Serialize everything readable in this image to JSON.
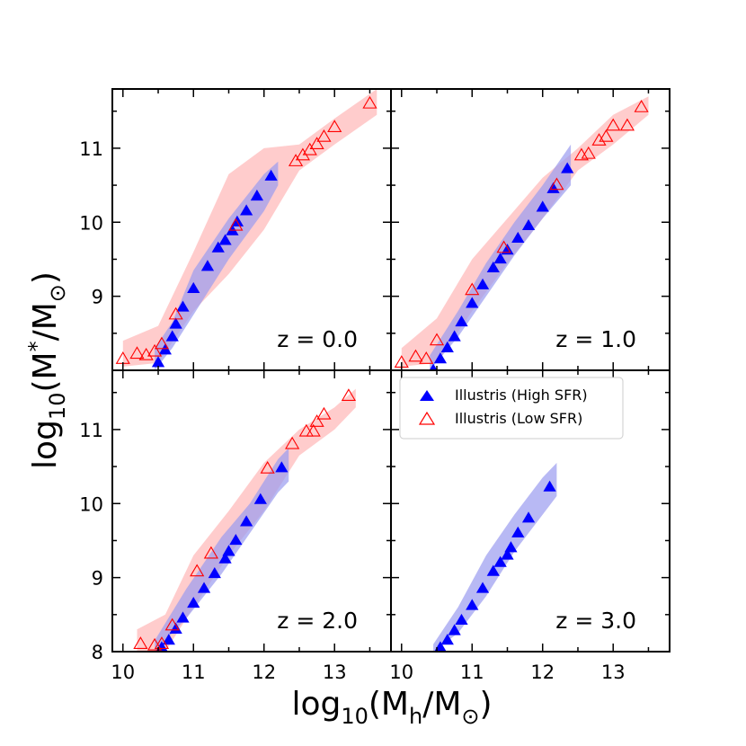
{
  "figure": {
    "xlabel": {
      "base": "log",
      "sub": "10",
      "pre": "(M",
      "msub": "h",
      "post": "/M",
      "sun": "⊙",
      "close": ")"
    },
    "ylabel": {
      "base": "log",
      "sub": "10",
      "pre": "(M",
      "msub": "*",
      "post": "/M",
      "sun": "⊙",
      "close": ")"
    },
    "colors": {
      "high": "#0000ff",
      "low": "#ff0000",
      "high_band": "#9a9bf0",
      "low_band": "#ffb6b6"
    }
  },
  "legend": {
    "entries": [
      {
        "label": "Illustris (High SFR)",
        "marker": "filled-triangle",
        "color": "#0000ff"
      },
      {
        "label": "Illustris (Low SFR)",
        "marker": "open-triangle",
        "color": "#ff0000"
      }
    ]
  },
  "chart_data": {
    "type": "scatter",
    "layout": "2x2 grid, shared axes",
    "xlim": [
      9.85,
      13.8
    ],
    "ylim": [
      8.0,
      11.8
    ],
    "xticks": [
      10,
      11,
      12,
      13
    ],
    "yticks": [
      8,
      9,
      10,
      11
    ],
    "panels": [
      {
        "label": "z = 0.0",
        "high": [
          [
            10.5,
            8.1
          ],
          [
            10.6,
            8.27
          ],
          [
            10.7,
            8.45
          ],
          [
            10.75,
            8.62
          ],
          [
            10.85,
            8.85
          ],
          [
            11.0,
            9.1
          ],
          [
            11.2,
            9.4
          ],
          [
            11.35,
            9.65
          ],
          [
            11.45,
            9.75
          ],
          [
            11.55,
            9.88
          ],
          [
            11.62,
            10.0
          ],
          [
            11.75,
            10.15
          ],
          [
            11.9,
            10.35
          ],
          [
            12.1,
            10.62
          ]
        ],
        "low": [
          [
            10.0,
            8.15
          ],
          [
            10.2,
            8.22
          ],
          [
            10.33,
            8.2
          ],
          [
            10.45,
            8.25
          ],
          [
            10.55,
            8.35
          ],
          [
            10.75,
            8.75
          ],
          [
            11.6,
            9.95
          ],
          [
            12.45,
            10.82
          ],
          [
            12.55,
            10.9
          ],
          [
            12.65,
            10.97
          ],
          [
            12.75,
            11.05
          ],
          [
            12.85,
            11.15
          ],
          [
            13.0,
            11.28
          ],
          [
            13.5,
            11.6
          ]
        ],
        "high_band": {
          "x": [
            10.45,
            10.7,
            11.0,
            11.5,
            12.0,
            12.2
          ],
          "lo": [
            8.0,
            8.3,
            8.75,
            9.5,
            10.15,
            10.5
          ],
          "hi": [
            8.3,
            8.65,
            9.35,
            10.05,
            10.65,
            10.82
          ]
        },
        "low_band": {
          "x": [
            10.0,
            10.5,
            11.0,
            11.5,
            12.0,
            12.5,
            13.0,
            13.6
          ],
          "lo": [
            8.05,
            8.1,
            8.8,
            9.3,
            9.9,
            10.7,
            11.05,
            11.45
          ],
          "hi": [
            8.4,
            8.6,
            9.6,
            10.65,
            11.0,
            11.05,
            11.4,
            11.8
          ]
        }
      },
      {
        "label": "z = 1.0",
        "high": [
          [
            10.45,
            8.0
          ],
          [
            10.55,
            8.15
          ],
          [
            10.65,
            8.3
          ],
          [
            10.75,
            8.45
          ],
          [
            10.85,
            8.65
          ],
          [
            11.0,
            8.9
          ],
          [
            11.15,
            9.15
          ],
          [
            11.3,
            9.38
          ],
          [
            11.4,
            9.5
          ],
          [
            11.5,
            9.62
          ],
          [
            11.65,
            9.78
          ],
          [
            11.8,
            9.95
          ],
          [
            12.0,
            10.2
          ],
          [
            12.15,
            10.45
          ],
          [
            12.35,
            10.72
          ]
        ],
        "low": [
          [
            10.0,
            8.1
          ],
          [
            10.2,
            8.18
          ],
          [
            10.35,
            8.15
          ],
          [
            10.5,
            8.4
          ],
          [
            11.0,
            9.08
          ],
          [
            11.45,
            9.65
          ],
          [
            12.2,
            10.5
          ],
          [
            12.55,
            10.9
          ],
          [
            12.65,
            10.92
          ],
          [
            12.8,
            11.1
          ],
          [
            12.9,
            11.15
          ],
          [
            13.0,
            11.3
          ],
          [
            13.2,
            11.3
          ],
          [
            13.4,
            11.55
          ]
        ],
        "high_band": {
          "x": [
            10.4,
            10.8,
            11.2,
            11.6,
            12.0,
            12.4
          ],
          "lo": [
            8.0,
            8.45,
            9.0,
            9.55,
            10.05,
            10.5
          ],
          "hi": [
            8.2,
            8.8,
            9.45,
            10.0,
            10.5,
            11.05
          ]
        },
        "low_band": {
          "x": [
            10.0,
            10.5,
            11.0,
            11.5,
            12.0,
            12.5,
            13.0,
            13.5
          ],
          "lo": [
            8.05,
            8.1,
            8.8,
            9.45,
            10.05,
            10.7,
            11.05,
            11.45
          ],
          "hi": [
            8.3,
            8.7,
            9.5,
            10.05,
            10.6,
            11.0,
            11.45,
            11.7
          ]
        }
      },
      {
        "label": "z = 2.0",
        "high": [
          [
            10.55,
            8.05
          ],
          [
            10.65,
            8.15
          ],
          [
            10.75,
            8.3
          ],
          [
            10.85,
            8.45
          ],
          [
            11.0,
            8.65
          ],
          [
            11.15,
            8.85
          ],
          [
            11.3,
            9.05
          ],
          [
            11.45,
            9.25
          ],
          [
            11.5,
            9.35
          ],
          [
            11.6,
            9.5
          ],
          [
            11.75,
            9.75
          ],
          [
            11.95,
            10.05
          ],
          [
            12.25,
            10.48
          ]
        ],
        "low": [
          [
            10.25,
            8.1
          ],
          [
            10.45,
            8.08
          ],
          [
            10.55,
            8.1
          ],
          [
            10.7,
            8.35
          ],
          [
            11.05,
            9.08
          ],
          [
            11.25,
            9.32
          ],
          [
            12.05,
            10.47
          ],
          [
            12.4,
            10.8
          ],
          [
            12.6,
            10.97
          ],
          [
            12.7,
            10.97
          ],
          [
            12.75,
            11.1
          ],
          [
            12.85,
            11.2
          ],
          [
            13.2,
            11.45
          ]
        ],
        "high_band": {
          "x": [
            10.45,
            10.9,
            11.4,
            11.8,
            12.2,
            12.35
          ],
          "lo": [
            8.0,
            8.45,
            9.05,
            9.6,
            10.15,
            10.3
          ],
          "hi": [
            8.15,
            8.85,
            9.55,
            10.0,
            10.6,
            10.75
          ]
        },
        "low_band": {
          "x": [
            10.2,
            10.6,
            11.0,
            11.5,
            12.0,
            12.5,
            13.0,
            13.3
          ],
          "lo": [
            8.0,
            8.0,
            8.6,
            9.3,
            9.9,
            10.65,
            11.0,
            11.3
          ],
          "hi": [
            8.3,
            8.5,
            9.3,
            9.9,
            10.55,
            11.0,
            11.3,
            11.55
          ]
        }
      },
      {
        "label": "z = 3.0",
        "high": [
          [
            10.55,
            8.05
          ],
          [
            10.65,
            8.15
          ],
          [
            10.75,
            8.28
          ],
          [
            10.85,
            8.42
          ],
          [
            11.0,
            8.62
          ],
          [
            11.15,
            8.85
          ],
          [
            11.3,
            9.08
          ],
          [
            11.4,
            9.2
          ],
          [
            11.5,
            9.3
          ],
          [
            11.55,
            9.4
          ],
          [
            11.65,
            9.6
          ],
          [
            11.8,
            9.8
          ],
          [
            12.1,
            10.22
          ]
        ],
        "low": [],
        "high_band": {
          "x": [
            10.45,
            10.8,
            11.2,
            11.6,
            12.0,
            12.2
          ],
          "lo": [
            8.0,
            8.25,
            8.75,
            9.35,
            9.85,
            10.1
          ],
          "hi": [
            8.1,
            8.6,
            9.3,
            9.85,
            10.35,
            10.55
          ]
        },
        "low_band": null
      }
    ]
  }
}
